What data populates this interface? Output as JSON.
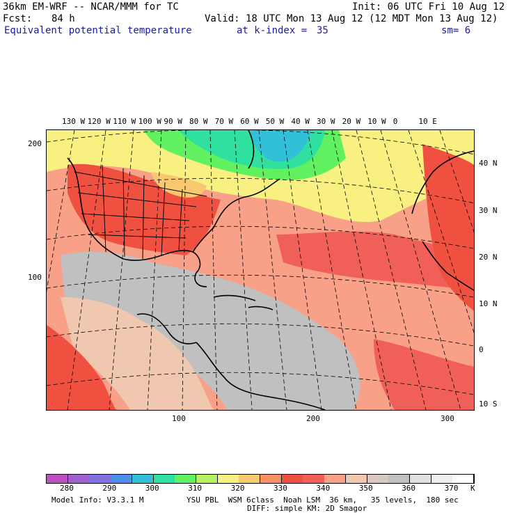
{
  "header": {
    "model_line": "36km EM-WRF -- NCAR/MMM for TC",
    "init_line": "Init: 06 UTC Fri 10 Aug 12",
    "fcst_label": "Fcst:",
    "fcst_value": "84 h",
    "valid_line": "Valid: 18 UTC Mon 13 Aug 12 (12 MDT Mon 13 Aug 12)",
    "field_name": "Equivalent potential temperature",
    "level_label": "at k-index =",
    "level_value": "35",
    "smooth": "sm= 6"
  },
  "map": {
    "lon_labels": [
      "130 W",
      "120 W",
      "110 W",
      "100 W",
      "90 W",
      "80 W",
      "70 W",
      "60 W",
      "50 W",
      "40 W",
      "30 W",
      "20 W",
      "10 W",
      "0",
      "10 E"
    ],
    "lat_labels": [
      "40 N",
      "30 N",
      "20 N",
      "10 N",
      "0",
      "10 S"
    ],
    "y_grid_labels": [
      "200",
      "100"
    ],
    "x_grid_labels": [
      "100",
      "200",
      "300"
    ]
  },
  "legend": {
    "tick_labels": [
      "280",
      "290",
      "300",
      "310",
      "320",
      "330",
      "340",
      "350",
      "360",
      "370"
    ],
    "unit": "K",
    "colors": [
      "#c050c0",
      "#a060d0",
      "#8070e0",
      "#5090e8",
      "#30c0d8",
      "#30e0a0",
      "#60f060",
      "#b8f060",
      "#f8f080",
      "#f8c870",
      "#f89060",
      "#f05040",
      "#f06058",
      "#f8a088",
      "#f0c8b0",
      "#d8c8c0",
      "#c0c0c0",
      "#e0e0e0",
      "#f0f0f0",
      "#ffffff"
    ]
  },
  "footer": {
    "model_info": "Model Info: V3.3.1 M",
    "physics": "YSU PBL  WSM 6class  Noah LSM  36 km,   35 levels,  180 sec",
    "diffusion": "DIFF: simple KM: 2D Smagor"
  }
}
